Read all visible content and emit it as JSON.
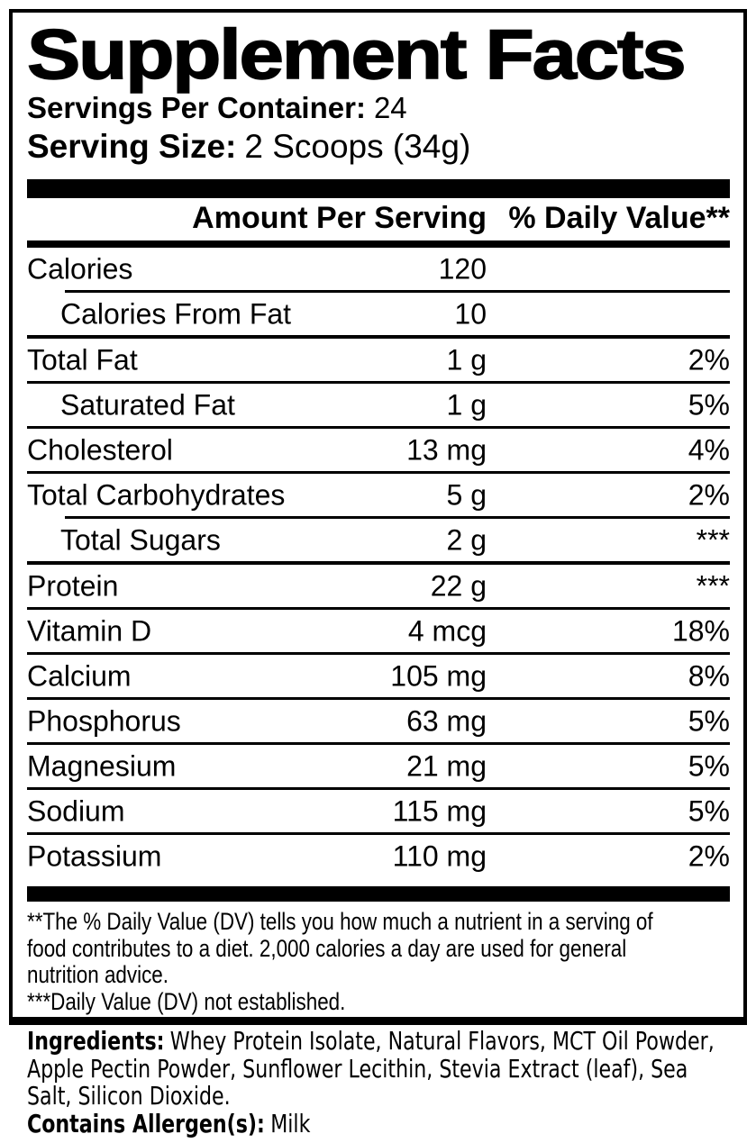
{
  "label": {
    "title": "Supplement Facts",
    "servings_per_container": {
      "label": "Servings Per Container:",
      "value": "24"
    },
    "serving_size": {
      "label": "Serving Size:",
      "value": "2 Scoops (34g)"
    },
    "columns": {
      "amount": "Amount Per Serving",
      "daily_value": "% Daily Value**"
    },
    "rows": [
      {
        "name": "Calories",
        "indent": false,
        "amount": "120",
        "dv": "",
        "divider": "indent"
      },
      {
        "name": "Calories From Fat",
        "indent": true,
        "amount": "10",
        "dv": "",
        "divider": "thick"
      },
      {
        "name": "Total Fat",
        "indent": false,
        "amount": "1 g",
        "dv": "2%",
        "divider": "full"
      },
      {
        "name": "Saturated Fat",
        "indent": true,
        "amount": "1 g",
        "dv": "5%",
        "divider": "full"
      },
      {
        "name": "Cholesterol",
        "indent": false,
        "amount": "13 mg",
        "dv": "4%",
        "divider": "full"
      },
      {
        "name": "Total Carbohydrates",
        "indent": false,
        "amount": "5 g",
        "dv": "2%",
        "divider": "indent"
      },
      {
        "name": "Total Sugars",
        "indent": true,
        "amount": "2 g",
        "dv": "***",
        "divider": "thick"
      },
      {
        "name": "Protein",
        "indent": false,
        "amount": "22 g",
        "dv": "***",
        "divider": "full"
      },
      {
        "name": "Vitamin D",
        "indent": false,
        "amount": "4 mcg",
        "dv": "18%",
        "divider": "full"
      },
      {
        "name": "Calcium",
        "indent": false,
        "amount": "105 mg",
        "dv": "8%",
        "divider": "full"
      },
      {
        "name": "Phosphorus",
        "indent": false,
        "amount": "63 mg",
        "dv": "5%",
        "divider": "full"
      },
      {
        "name": "Magnesium",
        "indent": false,
        "amount": "21 mg",
        "dv": "5%",
        "divider": "full"
      },
      {
        "name": "Sodium",
        "indent": false,
        "amount": "115 mg",
        "dv": "5%",
        "divider": "full"
      },
      {
        "name": "Potassium",
        "indent": false,
        "amount": "110 mg",
        "dv": "2%",
        "divider": "none"
      }
    ],
    "footnotes": {
      "daily_value_note_lines": [
        "**The % Daily Value (DV) tells you how much a nutrient in a serving of",
        "food contributes to a diet. 2,000 calories a day are used for general",
        "nutrition advice."
      ],
      "not_established_note": "***Daily Value (DV) not established."
    }
  },
  "ingredients": {
    "label": "Ingredients:",
    "lines": [
      "Whey Protein Isolate, Natural Flavors, MCT Oil Powder,",
      "Apple Pectin Powder, Sunflower Lecithin, Stevia Extract (leaf), Sea",
      "Salt, Silicon Dioxide."
    ]
  },
  "allergens": {
    "label": "Contains Allergen(s):",
    "value": "Milk"
  },
  "colors": {
    "text": "#000000",
    "background": "#ffffff"
  }
}
